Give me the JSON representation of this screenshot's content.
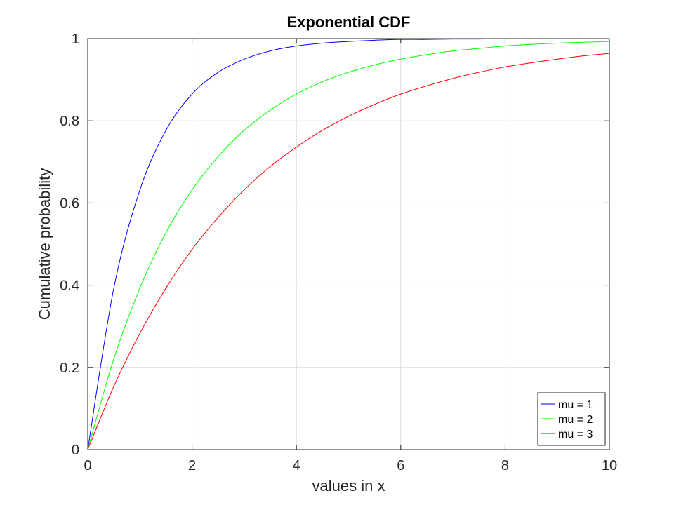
{
  "chart_data": {
    "type": "line",
    "title": "Exponential CDF",
    "xlabel": "values in x",
    "ylabel": "Cumulative probability",
    "xlim": [
      0,
      10
    ],
    "ylim": [
      0,
      1
    ],
    "xticks": [
      0,
      2,
      4,
      6,
      8,
      10
    ],
    "yticks": [
      0,
      0.2,
      0.4,
      0.6,
      0.8,
      1
    ],
    "xtick_labels": [
      "0",
      "2",
      "4",
      "6",
      "8",
      "10"
    ],
    "ytick_labels": [
      "0",
      "0.2",
      "0.4",
      "0.6",
      "0.8",
      "1"
    ],
    "grid": true,
    "legend_position": "bottom-right",
    "x": [
      0,
      0.5,
      1,
      1.5,
      2,
      2.5,
      3,
      3.5,
      4,
      4.5,
      5,
      5.5,
      6,
      6.5,
      7,
      7.5,
      8,
      8.5,
      9,
      9.5,
      10
    ],
    "series": [
      {
        "name": "mu = 1",
        "color": "#0000ff",
        "values": [
          0,
          0.393,
          0.632,
          0.777,
          0.865,
          0.918,
          0.95,
          0.97,
          0.982,
          0.989,
          0.993,
          0.996,
          0.998,
          0.998,
          0.999,
          0.999,
          1.0,
          1.0,
          1.0,
          1.0,
          1.0
        ]
      },
      {
        "name": "mu = 2",
        "color": "#00ff00",
        "values": [
          0,
          0.221,
          0.393,
          0.528,
          0.632,
          0.713,
          0.777,
          0.826,
          0.865,
          0.895,
          0.918,
          0.936,
          0.95,
          0.961,
          0.97,
          0.976,
          0.982,
          0.986,
          0.989,
          0.991,
          0.993
        ]
      },
      {
        "name": "mu = 3",
        "color": "#ff0000",
        "values": [
          0,
          0.154,
          0.283,
          0.393,
          0.487,
          0.565,
          0.632,
          0.689,
          0.736,
          0.777,
          0.811,
          0.84,
          0.865,
          0.885,
          0.903,
          0.918,
          0.931,
          0.941,
          0.95,
          0.958,
          0.964
        ]
      }
    ]
  }
}
